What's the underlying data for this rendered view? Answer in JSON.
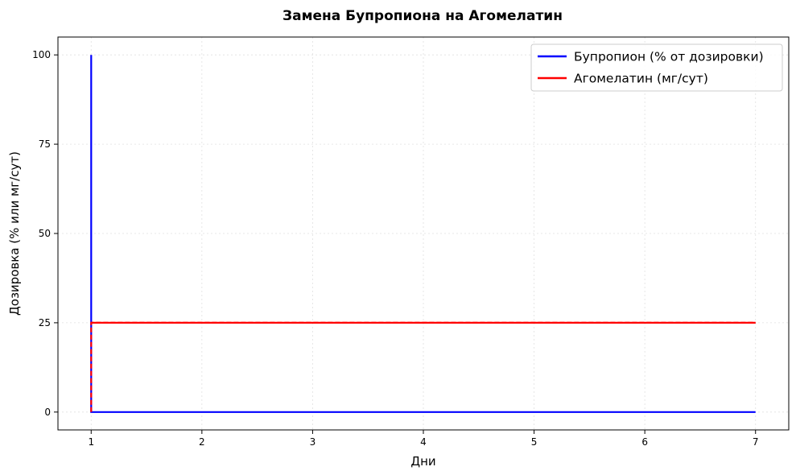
{
  "chart_data": {
    "type": "line",
    "title": "Замена Бупропиона на Агомелатин",
    "xlabel": "Дни",
    "ylabel": "Дозировка (% или мг/сут)",
    "xlim": [
      0.7,
      7.3
    ],
    "ylim": [
      -5,
      105
    ],
    "x_ticks": [
      1,
      2,
      3,
      4,
      5,
      6,
      7
    ],
    "y_ticks": [
      0,
      25,
      50,
      75,
      100
    ],
    "grid": true,
    "legend_position": "top-right",
    "series": [
      {
        "name": "Бупропион (% от дозировки)",
        "color": "#0000ff",
        "points": [
          [
            1,
            100
          ],
          [
            1,
            0
          ],
          [
            7,
            0
          ]
        ]
      },
      {
        "name": "Агомелатин (мг/сут)",
        "color": "#ff0000",
        "points": [
          [
            1,
            0
          ],
          [
            1,
            25
          ],
          [
            7,
            25
          ]
        ]
      }
    ]
  }
}
